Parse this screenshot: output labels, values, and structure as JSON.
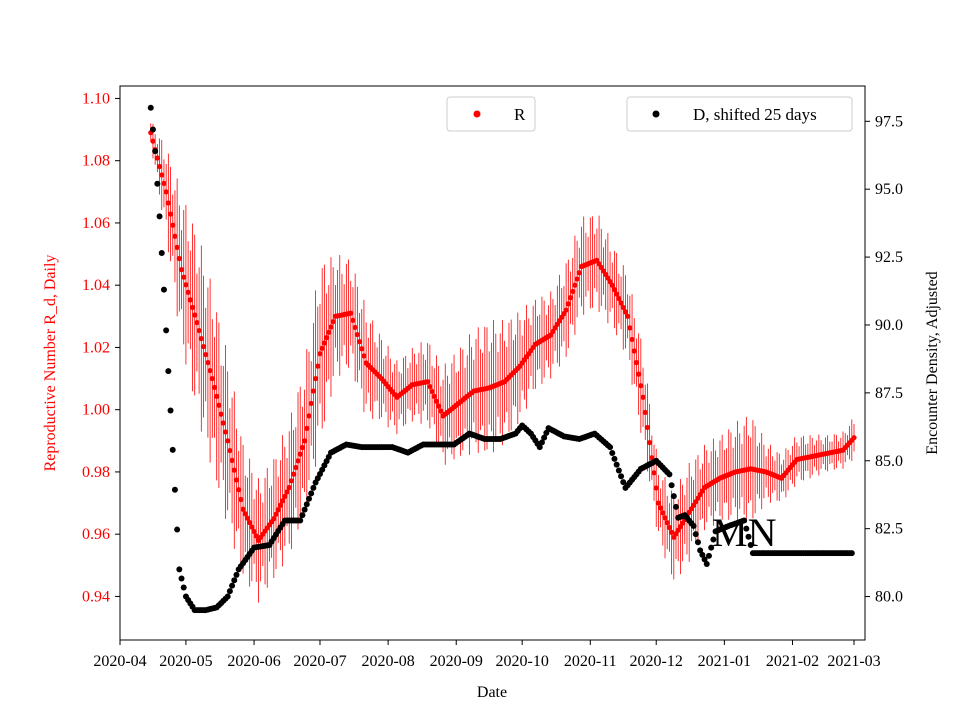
{
  "chart_data": {
    "type": "scatter",
    "xlabel": "Date",
    "ylabel_left": "Reproductive Number R_d, Daily",
    "ylabel_right": "Encounter Density, Adjusted",
    "annotation": "MN",
    "xlim": [
      "2020-04-01",
      "2021-03-06"
    ],
    "ylim_left": [
      0.926,
      1.104
    ],
    "ylim_right": [
      78.4,
      98.8
    ],
    "x_ticks": [
      "2020-04",
      "2020-05",
      "2020-06",
      "2020-07",
      "2020-08",
      "2020-09",
      "2020-10",
      "2020-11",
      "2020-12",
      "2021-01",
      "2021-02",
      "2021-03"
    ],
    "y_ticks_left": [
      "0.94",
      "0.96",
      "0.98",
      "1.00",
      "1.02",
      "1.04",
      "1.06",
      "1.08",
      "1.10"
    ],
    "y_ticks_right": [
      "80.0",
      "82.5",
      "85.0",
      "87.5",
      "90.0",
      "92.5",
      "95.0",
      "97.5"
    ],
    "grid": false,
    "colors": {
      "r_series": "#ff0000",
      "d_series": "#000000",
      "left_axis": "#ff0000",
      "right_axis": "#000000"
    },
    "legend_r": {
      "label": "R",
      "placement": "top-center"
    },
    "legend_d": {
      "label": "D, shifted 25 days",
      "placement": "top-right"
    },
    "series": [
      {
        "name": "R",
        "axis": "left",
        "color": "#ff0000",
        "marker": "dot-with-errorbars",
        "x": [
          "2020-04-15",
          "2020-04-22",
          "2020-04-29",
          "2020-05-06",
          "2020-05-13",
          "2020-05-20",
          "2020-05-27",
          "2020-06-03",
          "2020-06-10",
          "2020-06-17",
          "2020-06-24",
          "2020-07-01",
          "2020-07-08",
          "2020-07-15",
          "2020-07-22",
          "2020-07-29",
          "2020-08-05",
          "2020-08-12",
          "2020-08-19",
          "2020-08-26",
          "2020-09-02",
          "2020-09-09",
          "2020-09-16",
          "2020-09-23",
          "2020-09-30",
          "2020-10-07",
          "2020-10-14",
          "2020-10-21",
          "2020-10-28",
          "2020-11-04",
          "2020-11-11",
          "2020-11-18",
          "2020-11-25",
          "2020-12-02",
          "2020-12-09",
          "2020-12-16",
          "2020-12-23",
          "2020-12-30",
          "2021-01-06",
          "2021-01-13",
          "2021-01-20",
          "2021-01-27",
          "2021-02-03",
          "2021-02-10",
          "2021-02-17",
          "2021-02-24",
          "2021-03-01"
        ],
        "values": [
          1.089,
          1.07,
          1.045,
          1.028,
          1.01,
          0.99,
          0.968,
          0.958,
          0.965,
          0.975,
          0.99,
          1.018,
          1.03,
          1.031,
          1.015,
          1.01,
          1.004,
          1.008,
          1.009,
          0.998,
          1.002,
          1.006,
          1.007,
          1.009,
          1.014,
          1.021,
          1.024,
          1.032,
          1.046,
          1.048,
          1.04,
          1.03,
          1.004,
          0.97,
          0.959,
          0.967,
          0.975,
          0.978,
          0.98,
          0.981,
          0.98,
          0.978,
          0.984,
          0.985,
          0.986,
          0.987,
          0.991
        ],
        "errors": [
          0.004,
          0.015,
          0.025,
          0.03,
          0.03,
          0.028,
          0.022,
          0.02,
          0.02,
          0.022,
          0.025,
          0.03,
          0.02,
          0.018,
          0.018,
          0.014,
          0.012,
          0.012,
          0.014,
          0.016,
          0.018,
          0.02,
          0.022,
          0.02,
          0.018,
          0.015,
          0.014,
          0.016,
          0.016,
          0.016,
          0.014,
          0.014,
          0.016,
          0.012,
          0.015,
          0.016,
          0.014,
          0.014,
          0.016,
          0.018,
          0.01,
          0.008,
          0.008,
          0.007,
          0.006,
          0.006,
          0.007
        ]
      },
      {
        "name": "D, shifted 25 days",
        "axis": "right",
        "color": "#000000",
        "marker": "dot",
        "x": [
          "2020-04-15",
          "2020-04-17",
          "2020-04-19",
          "2020-04-21",
          "2020-04-23",
          "2020-04-25",
          "2020-04-28",
          "2020-05-01",
          "2020-05-05",
          "2020-05-10",
          "2020-05-15",
          "2020-05-20",
          "2020-05-25",
          "2020-06-01",
          "2020-06-08",
          "2020-06-15",
          "2020-06-22",
          "2020-06-29",
          "2020-07-06",
          "2020-07-13",
          "2020-07-20",
          "2020-07-27",
          "2020-08-03",
          "2020-08-10",
          "2020-08-17",
          "2020-08-24",
          "2020-08-31",
          "2020-09-07",
          "2020-09-14",
          "2020-09-21",
          "2020-09-28",
          "2020-10-01",
          "2020-10-05",
          "2020-10-09",
          "2020-10-13",
          "2020-10-20",
          "2020-10-27",
          "2020-11-03",
          "2020-11-10",
          "2020-11-17",
          "2020-11-24",
          "2020-12-01",
          "2020-12-07",
          "2020-12-11",
          "2020-12-14",
          "2020-12-18",
          "2020-12-21",
          "2020-12-24",
          "2020-12-28",
          "2021-01-03",
          "2021-01-10",
          "2021-01-14",
          "2021-01-17",
          "2021-01-24",
          "2021-01-31",
          "2021-02-07",
          "2021-02-14",
          "2021-02-21",
          "2021-02-28"
        ],
        "values": [
          98.0,
          96.4,
          94.0,
          91.3,
          88.3,
          85.4,
          81.0,
          80.0,
          79.5,
          79.5,
          79.6,
          80.0,
          81.0,
          81.8,
          81.9,
          82.8,
          82.8,
          84.2,
          85.3,
          85.6,
          85.5,
          85.5,
          85.5,
          85.3,
          85.6,
          85.6,
          85.6,
          86.0,
          85.8,
          85.8,
          86.0,
          86.3,
          86.0,
          85.5,
          86.2,
          85.9,
          85.8,
          86.0,
          85.5,
          84.0,
          84.7,
          85.0,
          84.5,
          82.9,
          83.0,
          82.6,
          81.7,
          81.2,
          82.4,
          82.6,
          82.8,
          81.6,
          81.6,
          81.6,
          81.6,
          81.6,
          81.6,
          81.6,
          81.6
        ]
      }
    ]
  }
}
